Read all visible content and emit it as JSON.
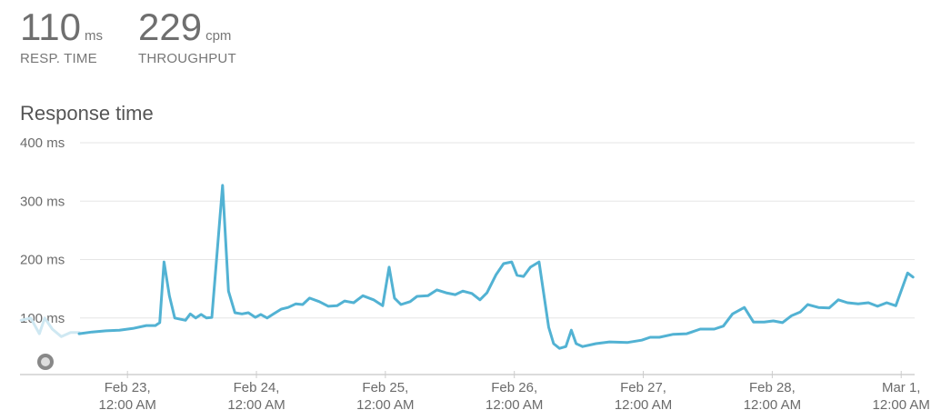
{
  "metrics": [
    {
      "value": "110",
      "unit": "ms",
      "label": "RESP. TIME"
    },
    {
      "value": "229",
      "unit": "cpm",
      "label": "THROUGHPUT"
    }
  ],
  "chart_data": {
    "type": "line",
    "title": "Response time",
    "xlim": [
      -20,
      146.5
    ],
    "xticks": [
      {
        "value": 0,
        "label": "Feb 23, 12:00 AM"
      },
      {
        "value": 24,
        "label": "Feb 24, 12:00 AM"
      },
      {
        "value": 48,
        "label": "Feb 25, 12:00 AM"
      },
      {
        "value": 72,
        "label": "Feb 26, 12:00 AM"
      },
      {
        "value": 96,
        "label": "Feb 27, 12:00 AM"
      },
      {
        "value": 120,
        "label": "Feb 28, 12:00 AM"
      },
      {
        "value": 144,
        "label": "Mar 1, 12:00 AM"
      }
    ],
    "ylim": [
      0,
      400
    ],
    "yticks": [
      {
        "value": 100,
        "label": "100 ms"
      },
      {
        "value": 200,
        "label": "200 ms"
      },
      {
        "value": 300,
        "label": "300 ms"
      },
      {
        "value": 400,
        "label": "400 ms"
      }
    ],
    "grid": true,
    "series": [
      {
        "color": "#cfe8f2",
        "x": [
          -19.8,
          -18,
          -16.4,
          -15.4,
          -14,
          -12.3,
          -10.6,
          -9
        ],
        "values": [
          96,
          100,
          73,
          100,
          81,
          68,
          75,
          75
        ]
      },
      {
        "color": "#52b2d3",
        "x": [
          -9,
          -6.6,
          -4,
          -1.5,
          1,
          3.5,
          5.2,
          6,
          6.8,
          7.8,
          8.8,
          10.8,
          11.7,
          12.7,
          13.7,
          14.7,
          15.7,
          17.7,
          18.8,
          20,
          21.3,
          22.5,
          23.8,
          24.8,
          26,
          27.2,
          28.6,
          29.9,
          31.3,
          32.6,
          33.9,
          35.7,
          37.4,
          39,
          40.4,
          42.1,
          43.8,
          45.8,
          47.5,
          48.7,
          49.7,
          50.9,
          52.6,
          53.9,
          55.9,
          57.6,
          59.3,
          61,
          62.4,
          64.1,
          65.6,
          66.9,
          68.6,
          70,
          71.5,
          72.5,
          73.7,
          75,
          76.6,
          78.4,
          79.3,
          80.4,
          81.6,
          82.6,
          83.5,
          84.7,
          87.2,
          89.7,
          93.1,
          95.7,
          97.3,
          99,
          101.6,
          104.1,
          106.6,
          109.2,
          110.9,
          112.6,
          114.8,
          116.5,
          118.5,
          120.2,
          121.9,
          123.6,
          125.2,
          126.6,
          128.6,
          130.6,
          132.3,
          134,
          136,
          137.9,
          139.6,
          141.3,
          143,
          145.2,
          146.2
        ],
        "values": [
          73,
          76,
          78,
          79,
          82,
          87,
          87,
          92,
          196,
          138,
          100,
          96,
          107,
          100,
          106,
          100,
          101,
          327,
          146,
          109,
          107,
          109,
          101,
          106,
          100,
          107,
          115,
          118,
          124,
          123,
          134,
          128,
          120,
          121,
          129,
          126,
          138,
          131,
          121,
          187,
          134,
          123,
          128,
          137,
          138,
          148,
          143,
          140,
          146,
          142,
          131,
          143,
          174,
          193,
          196,
          173,
          171,
          187,
          196,
          84,
          56,
          48,
          51,
          79,
          56,
          51,
          56,
          59,
          58,
          62,
          67,
          67,
          72,
          73,
          81,
          81,
          86,
          107,
          118,
          93,
          93,
          95,
          92,
          104,
          110,
          123,
          118,
          117,
          131,
          126,
          124,
          126,
          120,
          126,
          121,
          177,
          170
        ]
      }
    ]
  }
}
